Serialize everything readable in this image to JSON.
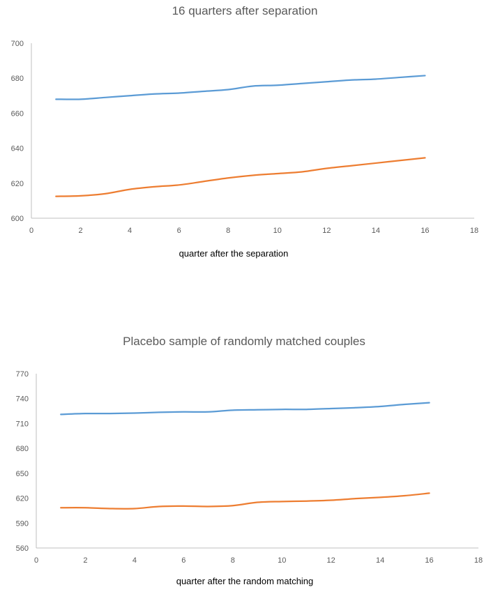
{
  "chart_data": [
    {
      "type": "line",
      "title": "16 quarters after separation",
      "xlabel": "quarter after the separation",
      "ylabel": "",
      "xlim": [
        0,
        18
      ],
      "ylim": [
        600,
        700
      ],
      "x_ticks": [
        0,
        2,
        4,
        6,
        8,
        10,
        12,
        14,
        16,
        18
      ],
      "y_ticks": [
        600,
        620,
        640,
        660,
        680,
        700
      ],
      "x": [
        1,
        2,
        3,
        4,
        5,
        6,
        7,
        8,
        9,
        10,
        11,
        12,
        13,
        14,
        15,
        16
      ],
      "grid": false,
      "series": [
        {
          "color": "#5B9BD5",
          "values": [
            668,
            668,
            669,
            670,
            671,
            671.5,
            672.5,
            673.5,
            675.5,
            676,
            677,
            678,
            679,
            679.5,
            680.5,
            681.5
          ]
        },
        {
          "color": "#ED7D31",
          "values": [
            612.5,
            612.8,
            614,
            616.5,
            618,
            619,
            621,
            623,
            624.5,
            625.5,
            626.5,
            628.5,
            630,
            631.5,
            633,
            634.5
          ]
        }
      ]
    },
    {
      "type": "line",
      "title": "Placebo sample of randomly matched couples",
      "xlabel": "quarter after the random matching",
      "ylabel": "",
      "xlim": [
        0,
        18
      ],
      "ylim": [
        560,
        770
      ],
      "x_ticks": [
        0,
        2,
        4,
        6,
        8,
        10,
        12,
        14,
        16,
        18
      ],
      "y_ticks": [
        560,
        590,
        620,
        650,
        680,
        710,
        740,
        770
      ],
      "x": [
        1,
        2,
        3,
        4,
        5,
        6,
        7,
        8,
        9,
        10,
        11,
        12,
        13,
        14,
        15,
        16
      ],
      "grid": false,
      "series": [
        {
          "color": "#5B9BD5",
          "values": [
            721,
            722,
            722,
            722.5,
            723.5,
            724,
            724,
            726,
            726.5,
            727,
            727,
            728,
            729,
            730.5,
            733,
            735
          ]
        },
        {
          "color": "#ED7D31",
          "values": [
            608.5,
            608.5,
            607.5,
            607.5,
            610,
            610.5,
            610,
            611,
            615,
            616,
            616.5,
            617.5,
            619.5,
            621,
            623,
            626
          ]
        }
      ]
    }
  ]
}
